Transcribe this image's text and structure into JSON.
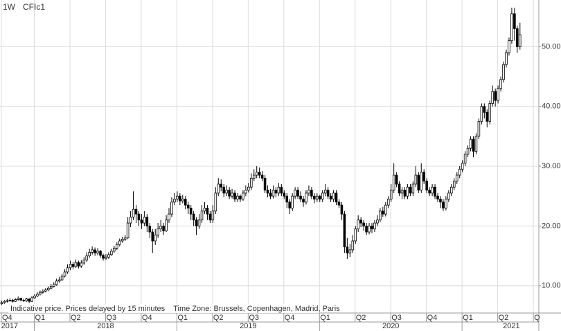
{
  "chart_data": {
    "type": "candlestick",
    "interval": "1W",
    "title": "CFIc1",
    "note": "Indicative price. Prices delayed by 15 minutes    Time Zone: Brussels, Copenhagen, Madrid, Paris",
    "up_color": "#ffffff",
    "down_color": "#000000",
    "outline_color": "#000000",
    "grid": true,
    "xlim": [
      0,
      196
    ],
    "ylim": [
      5.45,
      57.8
    ],
    "yticks": [
      {
        "value": 10,
        "label": "10.00"
      },
      {
        "value": 20,
        "label": "20.00"
      },
      {
        "value": 30,
        "label": "30.00"
      },
      {
        "value": 40,
        "label": "40.00"
      },
      {
        "value": 50,
        "label": "50.00"
      }
    ],
    "xticks": [
      {
        "value": 0,
        "label": "Q4"
      },
      {
        "value": 12,
        "label": "Q1"
      },
      {
        "value": 25,
        "label": "Q2"
      },
      {
        "value": 38,
        "label": "Q3"
      },
      {
        "value": 51,
        "label": "Q4"
      },
      {
        "value": 64,
        "label": "Q1"
      },
      {
        "value": 77,
        "label": "Q2"
      },
      {
        "value": 90,
        "label": "Q3"
      },
      {
        "value": 103,
        "label": "Q4"
      },
      {
        "value": 116,
        "label": "Q1"
      },
      {
        "value": 129,
        "label": "Q2"
      },
      {
        "value": 142,
        "label": "Q3"
      },
      {
        "value": 155,
        "label": "Q4"
      },
      {
        "value": 168,
        "label": "Q1"
      },
      {
        "value": 181,
        "label": "Q2"
      },
      {
        "value": 194,
        "label": "Q"
      }
    ],
    "year_ticks": [
      {
        "value": 3,
        "label": "2017"
      },
      {
        "value": 38,
        "label": "2018"
      },
      {
        "value": 90,
        "label": "2019"
      },
      {
        "value": 142,
        "label": "2020"
      },
      {
        "value": 186,
        "label": "2021"
      }
    ],
    "ohlc": [
      [
        7.0,
        7.5,
        6.8,
        7.2
      ],
      [
        7.2,
        7.6,
        7.0,
        7.4
      ],
      [
        7.4,
        7.8,
        7.2,
        7.5
      ],
      [
        7.5,
        7.9,
        7.3,
        7.6
      ],
      [
        7.6,
        7.8,
        7.2,
        7.4
      ],
      [
        7.4,
        7.9,
        7.3,
        7.7
      ],
      [
        7.7,
        8.2,
        7.5,
        7.9
      ],
      [
        7.9,
        8.0,
        7.4,
        7.6
      ],
      [
        7.6,
        7.8,
        7.3,
        7.5
      ],
      [
        7.5,
        8.0,
        7.3,
        7.8
      ],
      [
        7.8,
        7.9,
        7.1,
        7.4
      ],
      [
        7.4,
        8.3,
        7.3,
        8.0
      ],
      [
        8.0,
        8.6,
        7.8,
        8.3
      ],
      [
        8.3,
        8.9,
        8.1,
        8.6
      ],
      [
        8.6,
        9.2,
        8.4,
        8.9
      ],
      [
        8.9,
        9.4,
        8.7,
        9.1
      ],
      [
        9.1,
        9.6,
        8.9,
        9.3
      ],
      [
        9.3,
        9.9,
        9.1,
        9.6
      ],
      [
        9.6,
        10.3,
        9.4,
        9.9
      ],
      [
        9.9,
        10.6,
        9.7,
        10.2
      ],
      [
        10.2,
        11.2,
        10.0,
        10.8
      ],
      [
        10.8,
        11.5,
        10.5,
        11.0
      ],
      [
        11.0,
        12.0,
        10.8,
        11.6
      ],
      [
        11.6,
        12.8,
        11.4,
        12.3
      ],
      [
        12.3,
        13.6,
        12.0,
        13.0
      ],
      [
        13.0,
        14.2,
        12.6,
        13.6
      ],
      [
        13.6,
        14.0,
        12.8,
        13.2
      ],
      [
        13.2,
        14.4,
        13.0,
        13.9
      ],
      [
        13.9,
        14.2,
        12.9,
        13.3
      ],
      [
        13.3,
        14.3,
        13.0,
        13.8
      ],
      [
        13.8,
        14.8,
        13.5,
        14.3
      ],
      [
        14.3,
        15.6,
        14.0,
        15.0
      ],
      [
        15.0,
        16.2,
        14.7,
        15.6
      ],
      [
        15.6,
        16.6,
        15.2,
        16.0
      ],
      [
        16.0,
        16.4,
        15.0,
        15.5
      ],
      [
        15.5,
        16.3,
        15.1,
        15.8
      ],
      [
        15.8,
        16.0,
        14.7,
        15.1
      ],
      [
        15.1,
        15.4,
        14.2,
        14.6
      ],
      [
        14.6,
        15.3,
        14.3,
        14.8
      ],
      [
        14.8,
        15.6,
        14.5,
        15.2
      ],
      [
        15.2,
        16.2,
        15.0,
        15.8
      ],
      [
        15.8,
        16.7,
        15.5,
        16.3
      ],
      [
        16.3,
        17.3,
        16.0,
        16.9
      ],
      [
        16.9,
        17.9,
        16.6,
        17.5
      ],
      [
        17.5,
        18.2,
        17.2,
        17.8
      ],
      [
        17.8,
        18.5,
        17.5,
        18.0
      ],
      [
        18.0,
        21.5,
        17.8,
        20.5
      ],
      [
        20.5,
        22.5,
        19.8,
        21.5
      ],
      [
        21.5,
        25.8,
        21.0,
        22.8
      ],
      [
        22.8,
        23.5,
        20.5,
        22.0
      ],
      [
        22.0,
        22.5,
        20.0,
        21.0
      ],
      [
        21.0,
        22.0,
        19.5,
        20.5
      ],
      [
        20.5,
        22.5,
        20.0,
        21.5
      ],
      [
        21.5,
        22.0,
        19.0,
        20.0
      ],
      [
        20.0,
        20.5,
        18.0,
        19.0
      ],
      [
        19.0,
        19.5,
        15.5,
        17.5
      ],
      [
        17.5,
        19.5,
        16.8,
        18.5
      ],
      [
        18.5,
        20.5,
        18.0,
        19.5
      ],
      [
        19.5,
        21.0,
        19.0,
        20.0
      ],
      [
        20.0,
        20.5,
        18.5,
        19.2
      ],
      [
        19.2,
        21.8,
        19.0,
        21.0
      ],
      [
        21.0,
        23.0,
        20.5,
        22.0
      ],
      [
        22.0,
        24.8,
        21.5,
        24.0
      ],
      [
        24.0,
        25.5,
        23.5,
        24.5
      ],
      [
        24.5,
        25.8,
        24.0,
        25.0
      ],
      [
        25.0,
        25.5,
        23.5,
        24.2
      ],
      [
        24.2,
        25.2,
        23.8,
        24.5
      ],
      [
        24.5,
        25.0,
        22.8,
        23.5
      ],
      [
        23.5,
        24.0,
        22.0,
        23.0
      ],
      [
        23.0,
        23.5,
        21.0,
        22.0
      ],
      [
        22.0,
        22.5,
        20.0,
        21.0
      ],
      [
        21.0,
        21.5,
        18.5,
        20.0
      ],
      [
        20.0,
        22.0,
        19.5,
        21.0
      ],
      [
        21.0,
        23.5,
        20.5,
        22.5
      ],
      [
        22.5,
        24.0,
        22.0,
        23.0
      ],
      [
        23.0,
        23.5,
        21.0,
        22.0
      ],
      [
        22.0,
        22.5,
        20.5,
        21.0
      ],
      [
        21.0,
        23.5,
        20.5,
        22.5
      ],
      [
        22.5,
        26.5,
        22.0,
        25.5
      ],
      [
        25.5,
        28.0,
        25.0,
        27.0
      ],
      [
        27.0,
        27.8,
        25.8,
        26.5
      ],
      [
        26.5,
        27.0,
        24.8,
        25.5
      ],
      [
        25.5,
        26.8,
        25.0,
        26.0
      ],
      [
        26.0,
        26.5,
        24.5,
        25.0
      ],
      [
        25.0,
        26.2,
        24.6,
        25.5
      ],
      [
        25.5,
        26.0,
        24.0,
        24.5
      ],
      [
        24.5,
        25.5,
        24.0,
        25.0
      ],
      [
        25.0,
        25.3,
        24.0,
        24.5
      ],
      [
        24.5,
        26.0,
        24.2,
        25.5
      ],
      [
        25.5,
        26.8,
        25.0,
        26.0
      ],
      [
        26.0,
        27.2,
        25.6,
        26.5
      ],
      [
        26.5,
        28.8,
        26.0,
        28.0
      ],
      [
        28.0,
        29.5,
        27.5,
        28.5
      ],
      [
        28.5,
        30.0,
        28.0,
        29.0
      ],
      [
        29.0,
        29.8,
        28.0,
        28.5
      ],
      [
        28.5,
        29.2,
        27.5,
        28.0
      ],
      [
        28.0,
        28.5,
        25.5,
        26.0
      ],
      [
        26.0,
        26.8,
        24.8,
        25.5
      ],
      [
        25.5,
        26.2,
        24.5,
        25.0
      ],
      [
        25.0,
        26.8,
        24.6,
        26.0
      ],
      [
        26.0,
        26.5,
        24.8,
        25.5
      ],
      [
        25.5,
        27.2,
        25.0,
        26.5
      ],
      [
        26.5,
        27.0,
        25.0,
        25.5
      ],
      [
        25.5,
        26.0,
        24.5,
        25.0
      ],
      [
        25.0,
        25.5,
        23.0,
        24.0
      ],
      [
        24.0,
        24.5,
        22.0,
        23.0
      ],
      [
        23.0,
        25.5,
        22.5,
        25.0
      ],
      [
        25.0,
        26.5,
        24.5,
        26.0
      ],
      [
        26.0,
        26.5,
        24.5,
        25.0
      ],
      [
        25.0,
        25.8,
        24.0,
        24.5
      ],
      [
        24.5,
        25.0,
        23.2,
        24.0
      ],
      [
        24.0,
        26.0,
        23.6,
        25.5
      ],
      [
        25.5,
        26.8,
        25.0,
        26.0
      ],
      [
        26.0,
        26.5,
        24.5,
        25.0
      ],
      [
        25.0,
        25.5,
        23.8,
        24.5
      ],
      [
        24.5,
        25.5,
        24.0,
        25.0
      ],
      [
        25.0,
        25.2,
        24.0,
        24.5
      ],
      [
        24.5,
        26.0,
        24.0,
        25.5
      ],
      [
        25.5,
        27.0,
        25.0,
        26.0
      ],
      [
        26.0,
        26.5,
        24.5,
        25.0
      ],
      [
        25.0,
        25.5,
        24.0,
        24.5
      ],
      [
        24.5,
        26.0,
        24.0,
        25.5
      ],
      [
        25.5,
        26.0,
        23.5,
        24.0
      ],
      [
        24.0,
        24.5,
        23.0,
        23.5
      ],
      [
        23.5,
        24.0,
        21.0,
        22.0
      ],
      [
        22.0,
        22.5,
        15.5,
        16.5
      ],
      [
        16.5,
        18.0,
        14.5,
        15.5
      ],
      [
        15.5,
        17.0,
        14.8,
        16.0
      ],
      [
        16.0,
        18.5,
        15.5,
        17.5
      ],
      [
        17.5,
        20.0,
        17.0,
        19.5
      ],
      [
        19.5,
        21.8,
        19.0,
        21.0
      ],
      [
        21.0,
        21.5,
        19.8,
        20.5
      ],
      [
        20.5,
        21.0,
        19.2,
        20.0
      ],
      [
        20.0,
        20.5,
        18.5,
        19.0
      ],
      [
        19.0,
        20.5,
        18.6,
        20.0
      ],
      [
        20.0,
        20.5,
        18.8,
        19.5
      ],
      [
        19.5,
        21.0,
        19.0,
        20.5
      ],
      [
        20.5,
        21.8,
        20.0,
        21.0
      ],
      [
        21.0,
        23.0,
        20.6,
        22.5
      ],
      [
        22.5,
        23.2,
        21.5,
        22.0
      ],
      [
        22.0,
        24.0,
        21.6,
        23.5
      ],
      [
        23.5,
        25.0,
        23.0,
        24.5
      ],
      [
        24.5,
        27.0,
        24.0,
        26.0
      ],
      [
        26.0,
        30.5,
        25.5,
        28.5
      ],
      [
        28.5,
        29.0,
        26.5,
        27.0
      ],
      [
        27.0,
        27.5,
        25.0,
        25.5
      ],
      [
        25.5,
        26.5,
        24.5,
        26.0
      ],
      [
        26.0,
        26.5,
        24.5,
        25.0
      ],
      [
        25.0,
        27.0,
        24.5,
        26.5
      ],
      [
        26.5,
        27.0,
        25.0,
        25.5
      ],
      [
        25.5,
        27.5,
        25.0,
        27.0
      ],
      [
        27.0,
        30.0,
        26.5,
        28.5
      ],
      [
        28.5,
        29.0,
        25.5,
        26.0
      ],
      [
        26.0,
        30.5,
        25.5,
        29.0
      ],
      [
        29.0,
        29.5,
        27.0,
        27.5
      ],
      [
        27.5,
        28.0,
        25.5,
        26.0
      ],
      [
        26.0,
        26.5,
        25.0,
        25.5
      ],
      [
        25.5,
        27.0,
        25.0,
        26.5
      ],
      [
        26.5,
        27.0,
        24.5,
        25.0
      ],
      [
        25.0,
        25.5,
        24.0,
        24.5
      ],
      [
        24.5,
        25.0,
        23.0,
        24.0
      ],
      [
        24.0,
        24.5,
        22.5,
        23.0
      ],
      [
        23.0,
        25.0,
        22.6,
        24.5
      ],
      [
        24.5,
        26.0,
        24.0,
        25.5
      ],
      [
        25.5,
        27.0,
        25.0,
        26.5
      ],
      [
        26.5,
        28.0,
        26.0,
        27.5
      ],
      [
        27.5,
        29.0,
        27.0,
        28.5
      ],
      [
        28.5,
        30.0,
        28.0,
        29.5
      ],
      [
        29.5,
        31.0,
        29.0,
        30.5
      ],
      [
        30.5,
        32.5,
        30.0,
        32.0
      ],
      [
        32.0,
        33.5,
        31.5,
        33.0
      ],
      [
        33.0,
        35.0,
        32.5,
        34.5
      ],
      [
        34.5,
        35.0,
        31.5,
        32.5
      ],
      [
        32.5,
        35.5,
        32.0,
        35.0
      ],
      [
        35.0,
        38.0,
        34.5,
        37.5
      ],
      [
        37.5,
        40.5,
        37.0,
        40.0
      ],
      [
        40.0,
        40.5,
        38.0,
        39.0
      ],
      [
        39.0,
        39.5,
        36.5,
        37.5
      ],
      [
        37.5,
        41.0,
        37.0,
        40.5
      ],
      [
        40.5,
        43.5,
        40.0,
        42.5
      ],
      [
        42.5,
        43.0,
        40.0,
        41.0
      ],
      [
        41.0,
        43.5,
        40.5,
        43.0
      ],
      [
        43.0,
        45.0,
        42.5,
        44.5
      ],
      [
        44.5,
        47.5,
        44.0,
        47.0
      ],
      [
        47.0,
        49.5,
        46.5,
        49.0
      ],
      [
        49.0,
        51.5,
        48.5,
        51.0
      ],
      [
        51.0,
        56.5,
        50.5,
        55.5
      ],
      [
        55.5,
        56.5,
        51.0,
        53.0
      ],
      [
        53.0,
        53.5,
        49.0,
        50.0
      ],
      [
        50.0,
        54.0,
        49.5,
        52.0
      ]
    ]
  }
}
